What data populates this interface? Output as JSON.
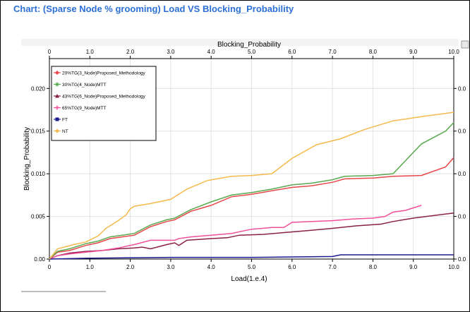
{
  "chart_title": "Chart: (Sparse Node % grooming) Load VS Blocking_Probability",
  "chart_data": {
    "type": "line",
    "xlabel": "Load(1.e.4)",
    "ylabel": "Blocking_Probability",
    "top_axis_label": "Blocking_Probability",
    "xlim": [
      0,
      10
    ],
    "ylim": [
      0,
      0.0235
    ],
    "x_ticks": [
      "0",
      "1.0",
      "2.0",
      "3.0",
      "4.0",
      "5.0",
      "6.0",
      "7.0",
      "8.0",
      "9.0",
      "10.0"
    ],
    "top_ticks": [
      "0",
      "1.0",
      "2.0",
      "3.0",
      "4.0",
      "5.0",
      "6.0",
      "7.0",
      "8.0",
      "9.0",
      "10.0"
    ],
    "y_ticks": [
      "0.00",
      "0.005",
      "0.010",
      "0.015",
      "0.020"
    ],
    "right_ticks": [
      "0.0",
      "0.0",
      "0.0",
      "0.0",
      "0.0"
    ],
    "grid": true,
    "legend_position": "top-left",
    "series": [
      {
        "name": "20%TG(3_Node)Proposed_Methodology",
        "color": "#e8474a",
        "marker": "diamond",
        "points": [
          [
            0,
            0
          ],
          [
            0.2,
            0.0008
          ],
          [
            0.5,
            0.001
          ],
          [
            0.9,
            0.0016
          ],
          [
            1.2,
            0.0019
          ],
          [
            1.5,
            0.0024
          ],
          [
            1.8,
            0.0026
          ],
          [
            2.1,
            0.0028
          ],
          [
            2.5,
            0.0038
          ],
          [
            2.9,
            0.0044
          ],
          [
            3.1,
            0.0046
          ],
          [
            3.5,
            0.0056
          ],
          [
            4.0,
            0.0063
          ],
          [
            4.5,
            0.0073
          ],
          [
            5.0,
            0.0076
          ],
          [
            5.5,
            0.008
          ],
          [
            6.0,
            0.0084
          ],
          [
            6.5,
            0.0086
          ],
          [
            7.0,
            0.009
          ],
          [
            7.3,
            0.0094
          ],
          [
            8.0,
            0.0095
          ],
          [
            8.5,
            0.0097
          ],
          [
            9.2,
            0.0098
          ],
          [
            9.8,
            0.0108
          ],
          [
            10,
            0.0119
          ]
        ]
      },
      {
        "name": "30%TG(4_Node)MTT",
        "color": "#5aa84f",
        "marker": "star",
        "points": [
          [
            0,
            0
          ],
          [
            0.2,
            0.0009
          ],
          [
            0.5,
            0.0012
          ],
          [
            0.9,
            0.0018
          ],
          [
            1.2,
            0.0021
          ],
          [
            1.5,
            0.0026
          ],
          [
            1.8,
            0.0028
          ],
          [
            2.1,
            0.003
          ],
          [
            2.5,
            0.004
          ],
          [
            2.9,
            0.0046
          ],
          [
            3.1,
            0.0048
          ],
          [
            3.5,
            0.0058
          ],
          [
            4.0,
            0.0067
          ],
          [
            4.5,
            0.0075
          ],
          [
            5.0,
            0.0078
          ],
          [
            5.5,
            0.0082
          ],
          [
            6.0,
            0.0087
          ],
          [
            6.5,
            0.0089
          ],
          [
            7.0,
            0.0093
          ],
          [
            7.3,
            0.0097
          ],
          [
            8.0,
            0.0098
          ],
          [
            8.5,
            0.01
          ],
          [
            9.2,
            0.0135
          ],
          [
            9.8,
            0.015
          ],
          [
            10,
            0.016
          ]
        ]
      },
      {
        "name": "43%TG(6_Node)Proposed_Methodology",
        "color": "#8a2048",
        "marker": "triangle",
        "points": [
          [
            0,
            0
          ],
          [
            0.2,
            0.0004
          ],
          [
            0.5,
            0.0007
          ],
          [
            0.9,
            0.0009
          ],
          [
            1.3,
            0.001
          ],
          [
            1.7,
            0.0012
          ],
          [
            2.1,
            0.0013
          ],
          [
            2.3,
            0.0014
          ],
          [
            2.5,
            0.0012
          ],
          [
            2.9,
            0.0017
          ],
          [
            3.1,
            0.0019
          ],
          [
            3.2,
            0.0016
          ],
          [
            3.4,
            0.0022
          ],
          [
            4.0,
            0.0024
          ],
          [
            4.4,
            0.0025
          ],
          [
            4.7,
            0.0028
          ],
          [
            5.3,
            0.0029
          ],
          [
            5.8,
            0.0031
          ],
          [
            6.3,
            0.0033
          ],
          [
            7.0,
            0.0036
          ],
          [
            7.6,
            0.0039
          ],
          [
            8.2,
            0.0041
          ],
          [
            8.5,
            0.0044
          ],
          [
            9.0,
            0.0048
          ],
          [
            10,
            0.0054
          ]
        ]
      },
      {
        "name": "65%TG(9_Node)MTT",
        "color": "#f04f9c",
        "marker": "plus",
        "points": [
          [
            0,
            0
          ],
          [
            0.2,
            0.0004
          ],
          [
            0.5,
            0.0006
          ],
          [
            0.9,
            0.0008
          ],
          [
            1.3,
            0.001
          ],
          [
            1.7,
            0.0013
          ],
          [
            2.1,
            0.0017
          ],
          [
            2.5,
            0.0022
          ],
          [
            3.1,
            0.0022
          ],
          [
            3.2,
            0.0024
          ],
          [
            3.5,
            0.0026
          ],
          [
            4.0,
            0.0028
          ],
          [
            4.5,
            0.003
          ],
          [
            5.0,
            0.0035
          ],
          [
            5.5,
            0.0037
          ],
          [
            5.8,
            0.0037
          ],
          [
            6.0,
            0.0043
          ],
          [
            6.5,
            0.0044
          ],
          [
            7.0,
            0.0045
          ],
          [
            7.5,
            0.0047
          ],
          [
            8.0,
            0.0048
          ],
          [
            8.3,
            0.005
          ],
          [
            8.5,
            0.0055
          ],
          [
            8.8,
            0.0057
          ],
          [
            9.2,
            0.0063
          ]
        ]
      },
      {
        "name": "FT",
        "color": "#1a1a8c",
        "marker": "square",
        "points": [
          [
            0,
            0
          ],
          [
            1.0,
            0.0001
          ],
          [
            3.0,
            0.0002
          ],
          [
            5.0,
            0.0002
          ],
          [
            7.0,
            0.0003
          ],
          [
            7.2,
            0.0005
          ],
          [
            8.5,
            0.0005
          ],
          [
            10,
            0.0005
          ]
        ]
      },
      {
        "name": "NT",
        "color": "#f5b94d",
        "marker": "diamond",
        "points": [
          [
            0,
            0
          ],
          [
            0.2,
            0.0012
          ],
          [
            0.6,
            0.0017
          ],
          [
            0.9,
            0.002
          ],
          [
            1.2,
            0.0027
          ],
          [
            1.4,
            0.0036
          ],
          [
            1.7,
            0.0045
          ],
          [
            1.9,
            0.0052
          ],
          [
            2.0,
            0.0059
          ],
          [
            2.1,
            0.0062
          ],
          [
            2.5,
            0.0065
          ],
          [
            3.0,
            0.007
          ],
          [
            3.4,
            0.0082
          ],
          [
            3.9,
            0.0092
          ],
          [
            4.5,
            0.0097
          ],
          [
            5.0,
            0.0098
          ],
          [
            5.5,
            0.01
          ],
          [
            6.0,
            0.0118
          ],
          [
            6.6,
            0.0134
          ],
          [
            7.2,
            0.0141
          ],
          [
            7.8,
            0.0152
          ],
          [
            8.5,
            0.0162
          ],
          [
            9.2,
            0.0167
          ],
          [
            10,
            0.0172
          ]
        ]
      }
    ]
  }
}
